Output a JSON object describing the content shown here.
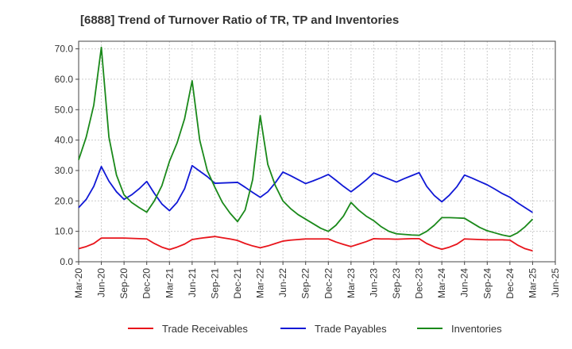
{
  "chart_data": {
    "type": "line",
    "title": "[6888]  Trend of Turnover Ratio of TR, TP and Inventories",
    "xlabel": "",
    "ylabel": "",
    "ylim": [
      0,
      72.5
    ],
    "y_ticks": [
      "0.0",
      "10.0",
      "20.0",
      "30.0",
      "40.0",
      "50.0",
      "60.0",
      "70.0"
    ],
    "x_ticks": [
      "Mar-20",
      "Jun-20",
      "Sep-20",
      "Dec-20",
      "Mar-21",
      "Jun-21",
      "Sep-21",
      "Dec-21",
      "Mar-22",
      "Jun-22",
      "Sep-22",
      "Dec-22",
      "Mar-23",
      "Jun-23",
      "Sep-23",
      "Dec-23",
      "Mar-24",
      "Jun-24",
      "Sep-24",
      "Dec-24",
      "Mar-25",
      "Jun-25"
    ],
    "x": [
      "2020-03",
      "2020-04",
      "2020-05",
      "2020-06",
      "2020-07",
      "2020-08",
      "2020-09",
      "2020-10",
      "2020-11",
      "2020-12",
      "2021-01",
      "2021-02",
      "2021-03",
      "2021-04",
      "2021-05",
      "2021-06",
      "2021-07",
      "2021-08",
      "2021-09",
      "2021-10",
      "2021-11",
      "2021-12",
      "2022-01",
      "2022-02",
      "2022-03",
      "2022-04",
      "2022-05",
      "2022-06",
      "2022-07",
      "2022-08",
      "2022-09",
      "2022-10",
      "2022-11",
      "2022-12",
      "2023-01",
      "2023-02",
      "2023-03",
      "2023-04",
      "2023-05",
      "2023-06",
      "2023-07",
      "2023-08",
      "2023-09",
      "2023-10",
      "2023-11",
      "2023-12",
      "2024-01",
      "2024-02",
      "2024-03",
      "2024-04",
      "2024-05",
      "2024-06",
      "2024-07",
      "2024-08",
      "2024-09",
      "2024-10",
      "2024-11",
      "2024-12",
      "2025-01",
      "2025-02",
      "2025-03"
    ],
    "grid": true,
    "legend_position": "bottom",
    "series": [
      {
        "name": "Trade Receivables",
        "color": "#e8141b",
        "values": [
          4.3,
          5.0,
          6.0,
          7.8,
          7.8,
          7.8,
          7.8,
          7.7,
          7.6,
          7.5,
          6.0,
          4.8,
          4.0,
          4.8,
          5.8,
          7.3,
          7.7,
          8.0,
          8.3,
          7.9,
          7.5,
          7.0,
          6.0,
          5.2,
          4.6,
          5.2,
          6.0,
          6.8,
          7.1,
          7.3,
          7.5,
          7.5,
          7.5,
          7.5,
          6.5,
          5.7,
          5.0,
          5.8,
          6.6,
          7.6,
          7.5,
          7.5,
          7.4,
          7.5,
          7.6,
          7.6,
          6.0,
          4.9,
          4.1,
          4.8,
          5.8,
          7.5,
          7.4,
          7.3,
          7.2,
          7.2,
          7.2,
          7.1,
          5.5,
          4.3,
          3.6
        ]
      },
      {
        "name": "Trade Payables",
        "color": "#1018d6",
        "values": [
          17.8,
          20.5,
          24.8,
          31.3,
          26.5,
          23.0,
          20.5,
          22.0,
          24.0,
          26.4,
          22.5,
          19.0,
          16.8,
          19.5,
          24.0,
          31.6,
          29.8,
          28.0,
          25.8,
          25.9,
          26.0,
          26.1,
          24.5,
          22.8,
          21.2,
          23.0,
          26.0,
          29.5,
          28.3,
          27.0,
          25.7,
          26.6,
          27.6,
          28.7,
          26.8,
          24.8,
          23.0,
          24.9,
          26.9,
          29.2,
          28.2,
          27.2,
          26.2,
          27.3,
          28.3,
          29.3,
          24.8,
          21.8,
          19.7,
          21.9,
          24.7,
          28.5,
          27.5,
          26.4,
          25.3,
          23.9,
          22.4,
          21.2,
          19.4,
          17.8,
          16.2
        ]
      },
      {
        "name": "Inventories",
        "color": "#1a891a",
        "values": [
          33.5,
          41.0,
          51.5,
          70.5,
          41.0,
          28.5,
          22.0,
          19.5,
          17.8,
          16.3,
          20.0,
          25.0,
          33.0,
          39.0,
          47.0,
          59.5,
          40.0,
          30.0,
          24.5,
          19.5,
          16.0,
          13.2,
          17.0,
          27.0,
          48.0,
          32.0,
          25.0,
          20.0,
          17.5,
          15.5,
          14.0,
          12.5,
          11.0,
          10.0,
          12.0,
          15.0,
          19.5,
          17.0,
          15.0,
          13.5,
          11.5,
          10.0,
          9.2,
          9.0,
          8.8,
          8.7,
          10.0,
          12.0,
          14.5,
          14.5,
          14.4,
          14.3,
          12.8,
          11.3,
          10.2,
          9.5,
          8.8,
          8.3,
          9.5,
          11.5,
          14.0
        ]
      }
    ]
  }
}
